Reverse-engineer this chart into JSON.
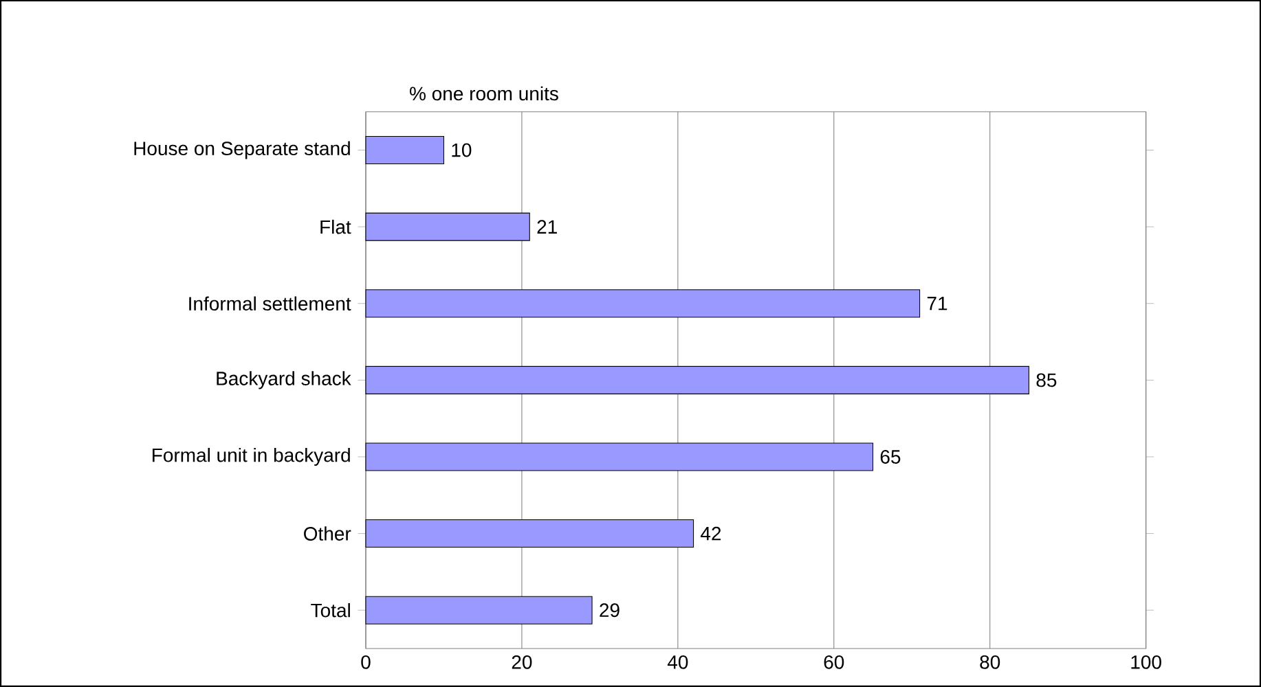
{
  "chart_data": {
    "type": "bar",
    "orientation": "horizontal",
    "title": "% one room units",
    "categories": [
      "House on Separate stand",
      "Flat",
      "Informal settlement",
      "Backyard shack",
      "Formal unit in backyard",
      "Other",
      "Total"
    ],
    "values": [
      10,
      21,
      71,
      85,
      65,
      42,
      29
    ],
    "color": "#9999ff",
    "xlim": [
      0,
      100
    ],
    "xticks": [
      0,
      20,
      40,
      60,
      80,
      100
    ],
    "grid": "x",
    "data_labels": true
  }
}
